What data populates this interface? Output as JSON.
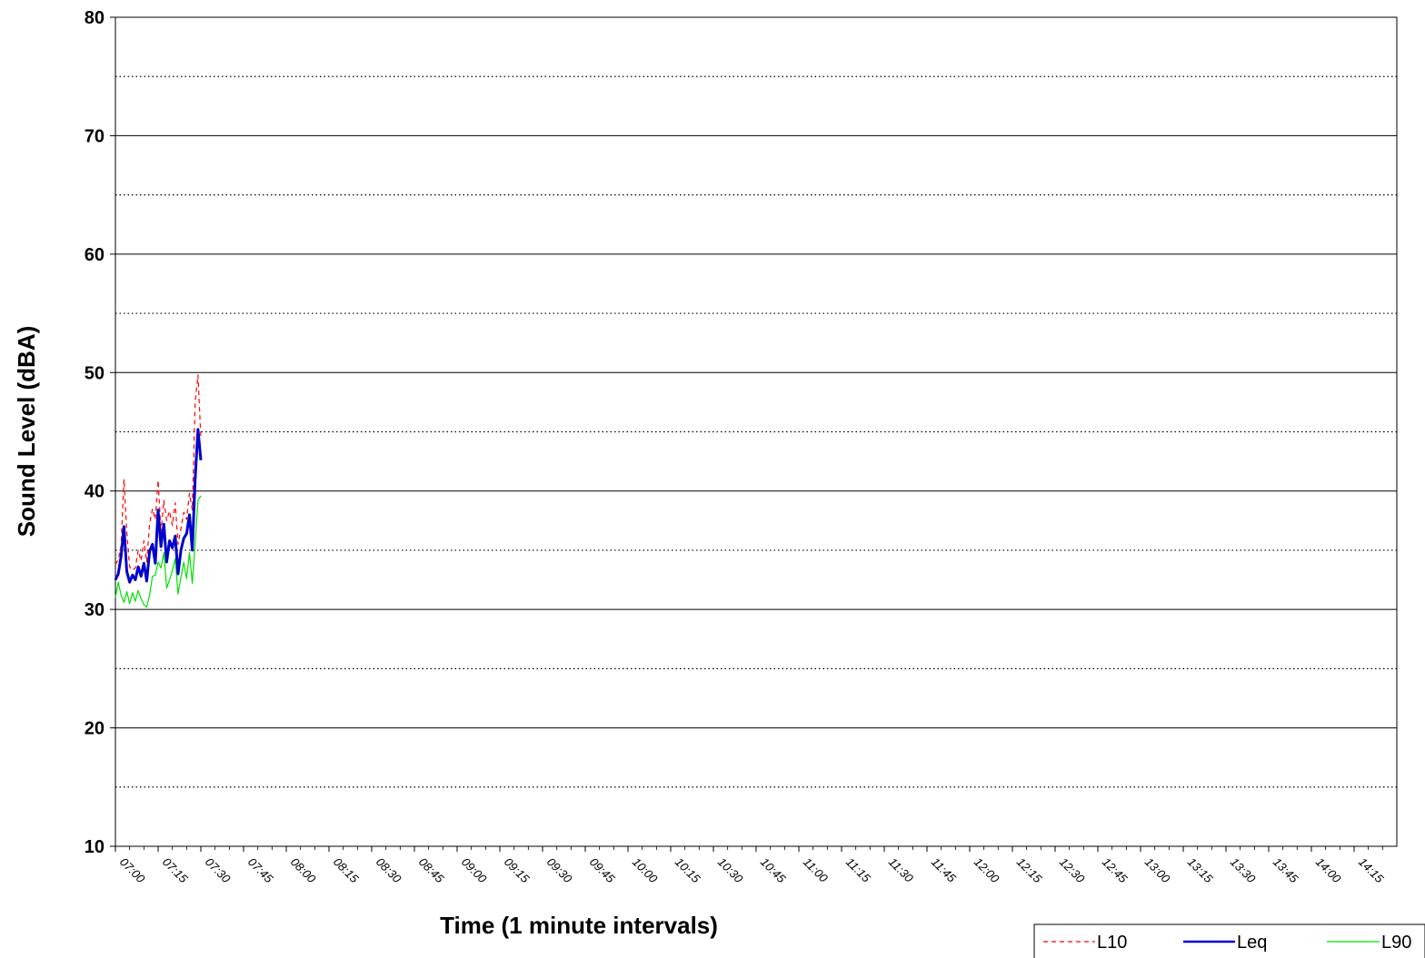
{
  "chart_data": {
    "type": "line",
    "title": "",
    "xlabel": "Time (1 minute intervals)",
    "ylabel": "Sound Level (dBA)",
    "ylim": [
      10,
      80
    ],
    "ytick_major": [
      10,
      20,
      30,
      40,
      50,
      60,
      70,
      80
    ],
    "ytick_minor_dotted": [
      15,
      25,
      35,
      45,
      55,
      65,
      75
    ],
    "x_tick_labels": [
      "07:00",
      "07:15",
      "07:30",
      "07:45",
      "08:00",
      "08:15",
      "08:30",
      "08:45",
      "09:00",
      "09:15",
      "09:30",
      "09:45",
      "10:00",
      "10:15",
      "10:30",
      "10:45",
      "11:00",
      "11:15",
      "11:30",
      "11:45",
      "12:00",
      "12:15",
      "12:30",
      "12:45",
      "13:00",
      "13:15",
      "13:30",
      "13:45",
      "14:00",
      "14:15"
    ],
    "x_range_minutes": [
      0,
      450
    ],
    "x_tick_start_minute": 0,
    "x_tick_step_minutes": 15,
    "legend_position": "bottom-right",
    "grid": true,
    "x_minutes": [
      0,
      1,
      2,
      3,
      4,
      5,
      6,
      7,
      8,
      9,
      10,
      11,
      12,
      13,
      14,
      15,
      16,
      17,
      18,
      19,
      20,
      21,
      22,
      23,
      24,
      25,
      26,
      27,
      28,
      29,
      30,
      31,
      32,
      33,
      34,
      35
    ],
    "series": [
      {
        "name": "L10",
        "style": "dashed",
        "color": "#ff0000",
        "values": [
          33.8,
          34.2,
          35.4,
          41.0,
          36.5,
          33.6,
          33.3,
          33.5,
          35.0,
          34.1,
          35.8,
          34.0,
          37.2,
          38.5,
          37.6,
          40.9,
          36.5,
          39.2,
          37.5,
          38.3,
          37.1,
          39.0,
          35.5,
          36.8,
          38.2,
          37.6,
          39.8,
          38.4,
          47.5,
          49.8,
          44.5,
          null,
          null,
          null,
          null,
          null
        ]
      },
      {
        "name": "Leq",
        "style": "solid-thick",
        "color": "#0000cc",
        "values": [
          32.5,
          33.0,
          34.5,
          37.0,
          33.2,
          32.3,
          32.9,
          32.5,
          33.6,
          32.8,
          33.9,
          32.4,
          34.9,
          35.5,
          33.9,
          38.4,
          35.3,
          37.2,
          34.0,
          35.8,
          35.2,
          36.2,
          33.0,
          35.0,
          36.0,
          36.4,
          38.0,
          35.0,
          41.0,
          45.2,
          42.6,
          null,
          null,
          null,
          null,
          null
        ]
      },
      {
        "name": "L90",
        "style": "solid-thin",
        "color": "#00e000",
        "values": [
          31.0,
          32.3,
          31.2,
          30.6,
          31.5,
          30.5,
          31.4,
          30.7,
          31.6,
          30.9,
          30.4,
          30.2,
          31.2,
          32.8,
          32.9,
          34.0,
          33.5,
          34.8,
          31.8,
          32.5,
          33.3,
          34.3,
          31.3,
          32.7,
          34.0,
          32.6,
          34.8,
          32.2,
          35.6,
          39.2,
          39.6,
          null,
          null,
          null,
          null,
          null
        ]
      }
    ]
  }
}
